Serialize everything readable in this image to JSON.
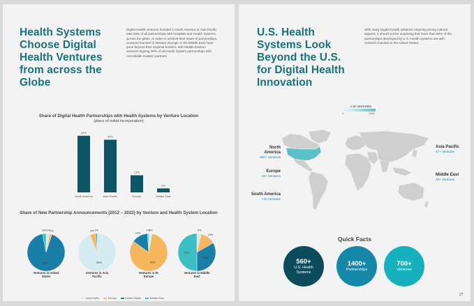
{
  "left": {
    "title": "Health Systems Choose Digital Health Ventures from across the Globe",
    "paragraph": "Digital Health ventures founded in North America or Asia Pacific take 83% of all partnerships with hospitals and Health Systems across the globe. In order to achieve their share of partnerships, ventures founded in Western Europe or the Middle East have gone beyond their regional borders, with Middle Eastern ventures signing 49% of all Health System partnerships with non-Middle Eastern partners."
  },
  "right": {
    "title": "U.S. Health Systems Look Beyond the U.S. for Digital Health Innovation",
    "paragraph": "With many Digital Health solutions requiring strong cultural aspects, it should not be surprising that more than 80% of the partnerships developed by U.S. Health Systems are with ventures founded in the United States.",
    "map_legend": {
      "title": "# OF VENTURES",
      "min": "0",
      "max": ">300"
    },
    "regions": [
      {
        "name": "North America",
        "count": "580+ Ventures"
      },
      {
        "name": "Europe",
        "count": "48+ Ventures"
      },
      {
        "name": "South America",
        "count": "<10 Ventures"
      },
      {
        "name": "Asia Pacific",
        "count": "47+ Ventures"
      },
      {
        "name": "Middle East",
        "count": "18+ Ventures"
      }
    ],
    "quick_facts_title": "Quick Facts",
    "facts": [
      {
        "value": "560+",
        "label": "U.S. Health Systems",
        "color": "#0b4c5c"
      },
      {
        "value": "1400+",
        "label": "Partnerships",
        "color": "#1588aa"
      },
      {
        "value": "700+",
        "label": "Ventures",
        "color": "#17b0be"
      }
    ],
    "page_number": "27"
  },
  "colors": {
    "teal_dark": "#0d5566",
    "asia": "#d4ebf1",
    "europe": "#f5b65e",
    "us": "#1a7fa8",
    "me": "#3bbfc3"
  },
  "chart_data": [
    {
      "type": "bar",
      "title": "Share of Digital Health Partnerships with Health Systems by Venture Location",
      "subtitle": "(place of initial incorporation)",
      "categories": [
        "North America",
        "Asia Pacific",
        "Europe",
        "Middle East"
      ],
      "values": [
        43,
        40,
        13,
        3
      ],
      "value_labels": [
        "43%",
        "40%",
        "13%",
        "3%"
      ],
      "ylim": [
        0,
        45
      ]
    },
    {
      "type": "pie",
      "title": "Share of New Partnership Announcements (2012 – 2022) by Venture and Health System Location",
      "legend": [
        "Asia Pacific",
        "Europe",
        "United States",
        "Middle East"
      ],
      "legend_colors": [
        "#d4ebf1",
        "#f5b65e",
        "#1a7fa8",
        "#3bbfc3"
      ],
      "pies": [
        {
          "name": "Ventures in United States",
          "values": [
            3,
            2,
            92,
            3
          ],
          "labels": [
            "3%",
            "2%",
            "92%",
            "3%"
          ]
        },
        {
          "name": "Ventures in Asia Pacific",
          "values": [
            94,
            5,
            1,
            0
          ],
          "labels": [
            "94%",
            "5%",
            "1%",
            ""
          ]
        },
        {
          "name": "Ventures in W. Europe",
          "values": [
            3,
            82,
            14,
            1
          ],
          "labels": [
            "3%",
            "82%",
            "14%",
            "1%"
          ]
        },
        {
          "name": "Ventures in Middle East",
          "values": [
            4,
            13,
            34,
            51
          ],
          "labels": [
            "4%",
            "13%",
            "34%",
            "51%"
          ]
        }
      ]
    }
  ]
}
